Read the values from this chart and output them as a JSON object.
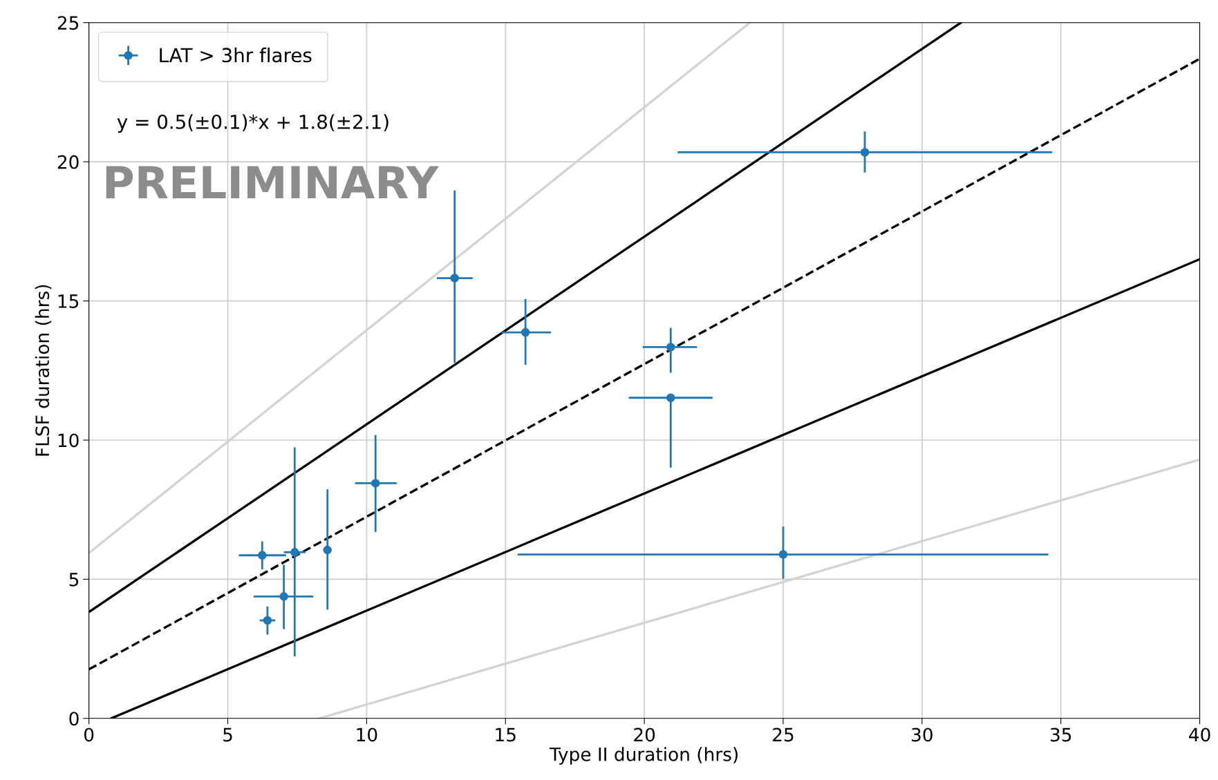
{
  "chart_data": {
    "type": "scatter",
    "xlabel": "Type II duration (hrs)",
    "ylabel": "FLSF duration (hrs)",
    "xlim": [
      0,
      40
    ],
    "ylim": [
      0,
      25
    ],
    "xticks": [
      0,
      5,
      10,
      15,
      20,
      25,
      30,
      35,
      40
    ],
    "yticks": [
      0,
      5,
      10,
      15,
      20,
      25
    ],
    "grid": true,
    "legend": "top left",
    "annotations": [
      "y = 0.5(±0.1)*x + 1.8(±2.1)",
      "PRELIMINARY"
    ],
    "series": [
      {
        "type": "line",
        "color": "#d3d3d3",
        "line_style": "solid",
        "x": [
          0,
          23.8
        ],
        "values": [
          5.94,
          25
        ]
      },
      {
        "type": "line",
        "color": "#d3d3d3",
        "line_style": "solid",
        "x": [
          8.3,
          40
        ],
        "values": [
          0,
          9.3
        ]
      },
      {
        "type": "line",
        "color": "#000000",
        "line_style": "solid",
        "x": [
          0,
          31.4
        ],
        "values": [
          3.82,
          25
        ]
      },
      {
        "type": "line",
        "color": "#000000",
        "line_style": "solid",
        "x": [
          0.8,
          40
        ],
        "values": [
          0,
          16.5
        ]
      },
      {
        "type": "line",
        "color": "#000000",
        "line_style": "dashed",
        "x": [
          0,
          40
        ],
        "values": [
          1.76,
          23.7
        ]
      },
      {
        "name": "LAT > 3hr flares",
        "color": "#1f77b4",
        "marker": "circle",
        "x": [
          6.24,
          6.43,
          7.02,
          7.41,
          8.59,
          10.32,
          13.17,
          15.72,
          20.95,
          20.95,
          25.0,
          27.94
        ],
        "values": [
          5.86,
          3.52,
          4.38,
          5.97,
          6.05,
          8.45,
          15.82,
          13.87,
          13.34,
          11.52,
          5.89,
          20.34
        ],
        "errors": [
          [
            5.36,
            6.36
          ],
          [
            3.01,
            4.02
          ],
          [
            3.21,
            5.52
          ],
          [
            2.23,
            9.74
          ],
          [
            3.91,
            8.23
          ],
          [
            6.7,
            10.18
          ],
          [
            12.78,
            18.97
          ],
          [
            12.7,
            15.07
          ],
          [
            12.42,
            14.03
          ],
          [
            9.01,
            11.52
          ],
          [
            5.02,
            6.89
          ],
          [
            19.61,
            21.09
          ]
        ],
        "xerrors": [
          [
            5.4,
            7.1
          ],
          [
            6.15,
            6.71
          ],
          [
            5.93,
            8.08
          ],
          [
            7.02,
            7.8
          ],
          null,
          [
            9.59,
            11.08
          ],
          [
            12.53,
            13.82
          ],
          [
            14.85,
            16.64
          ],
          [
            19.94,
            21.9
          ],
          [
            19.44,
            22.46
          ],
          [
            15.44,
            34.55
          ],
          [
            21.2,
            34.69
          ]
        ]
      }
    ]
  }
}
